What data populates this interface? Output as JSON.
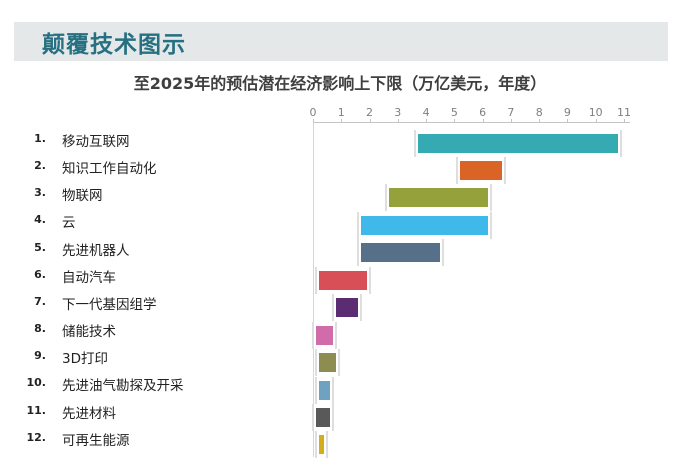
{
  "header": {
    "title": "颠覆技术图示"
  },
  "colors": {
    "banner_bg": "#E4E8E9",
    "title": "#267081",
    "subtitle": "#3F3F3F",
    "axis_line": "#C4C4C4",
    "tick_label": "#7F7F7F",
    "label_text": "#222222",
    "bar_end_tick": "#DEDEDE"
  },
  "chart_data": {
    "type": "bar",
    "variant": "horizontal-floating-range",
    "title": "至2025年的预估潜在经济影响上下限（万亿美元，年度）",
    "unit": "万亿美元，年度",
    "xlim": [
      0,
      11
    ],
    "x_ticks": [
      "0",
      "1",
      "2",
      "3",
      "4",
      "5",
      "6",
      "7",
      "8",
      "9",
      "10",
      "11"
    ],
    "grid": false,
    "legend": false,
    "categories": [
      {
        "num": "1.",
        "label": "移动互联网",
        "range": [
          3.7,
          10.8
        ],
        "color": "#35AAB3"
      },
      {
        "num": "2.",
        "label": "知识工作自动化",
        "range": [
          5.2,
          6.7
        ],
        "color": "#DA6426"
      },
      {
        "num": "3.",
        "label": "物联网",
        "range": [
          2.7,
          6.2
        ],
        "color": "#95A23C"
      },
      {
        "num": "4.",
        "label": "云",
        "range": [
          1.7,
          6.2
        ],
        "color": "#3FB9EA"
      },
      {
        "num": "5.",
        "label": "先进机器人",
        "range": [
          1.7,
          4.5
        ],
        "color": "#56708A"
      },
      {
        "num": "6.",
        "label": "自动汽车",
        "range": [
          0.2,
          1.9
        ],
        "color": "#D94F57"
      },
      {
        "num": "7.",
        "label": "下一代基因组学",
        "range": [
          0.8,
          1.6
        ],
        "color": "#5B2C71"
      },
      {
        "num": "8.",
        "label": "储能技术",
        "range": [
          0.1,
          0.7
        ],
        "color": "#D06CA9"
      },
      {
        "num": "9.",
        "label": "3D打印",
        "range": [
          0.2,
          0.8
        ],
        "color": "#8D8D51"
      },
      {
        "num": "10.",
        "label": "先进油气勘探及开采",
        "range": [
          0.2,
          0.6
        ],
        "color": "#6FA1C1"
      },
      {
        "num": "11.",
        "label": "先进材料",
        "range": [
          0.1,
          0.6
        ],
        "color": "#595959"
      },
      {
        "num": "12.",
        "label": "可再生能源",
        "range": [
          0.2,
          0.4
        ],
        "color": "#D2AD1D"
      }
    ]
  }
}
